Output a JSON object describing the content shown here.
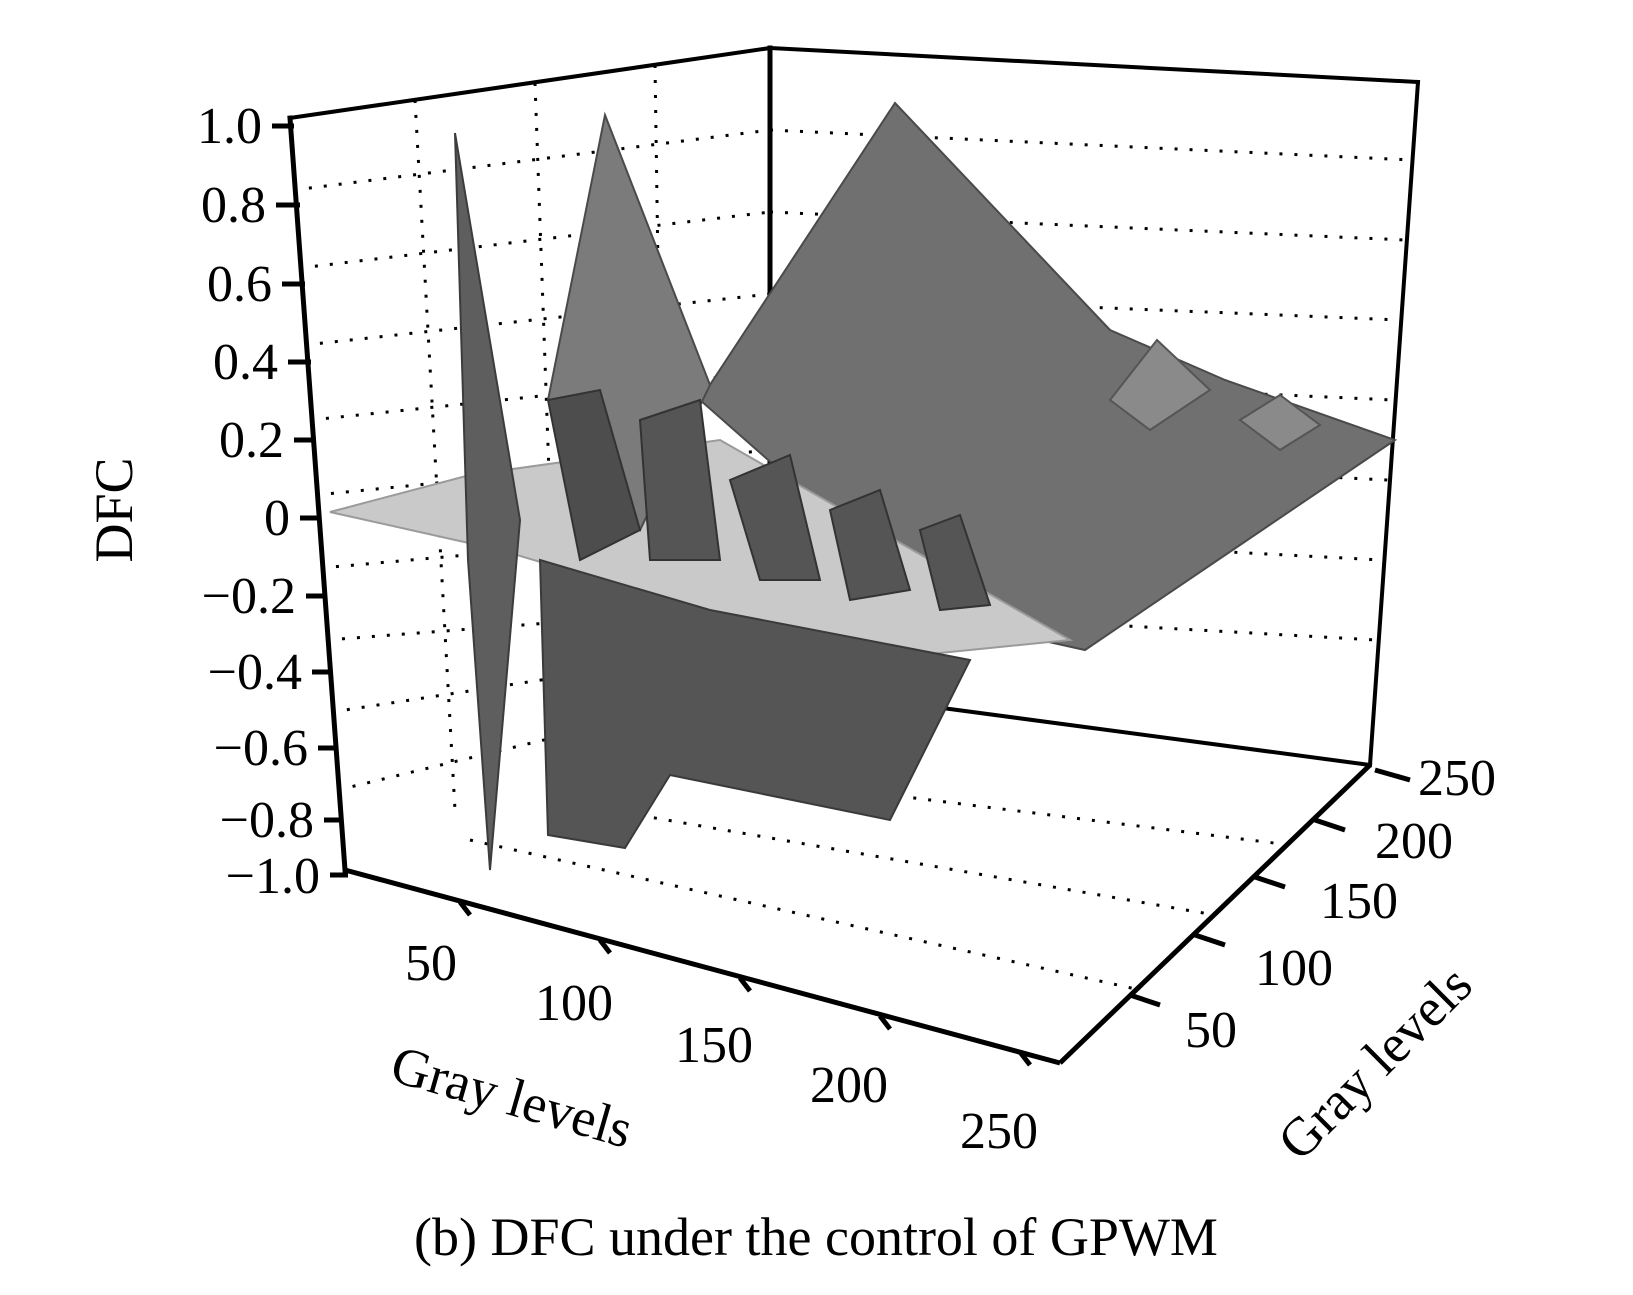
{
  "caption": "(b) DFC under the control of GPWM",
  "chart_data": {
    "type": "surface3d",
    "zlabel": "DFC",
    "xlabel": "Gray levels",
    "ylabel": "Gray levels",
    "zlim": [
      -1.0,
      1.0
    ],
    "xlim": [
      0,
      255
    ],
    "ylim": [
      0,
      255
    ],
    "z_ticks": [
      "1.0",
      "0.8",
      "0.6",
      "0.4",
      "0.2",
      "0",
      "−0.2",
      "−0.4",
      "−0.6",
      "−0.8",
      "−1.0"
    ],
    "x_ticks": [
      "50",
      "100",
      "150",
      "200",
      "250"
    ],
    "y_ticks": [
      "50",
      "100",
      "150",
      "200",
      "250"
    ],
    "grid": true,
    "colormap": "gray",
    "surface_color": "#6e6e6e",
    "peaks": [
      {
        "x": 32,
        "y": 0,
        "z": 1.0
      },
      {
        "x": 64,
        "y": 0,
        "z": 1.0
      },
      {
        "x": 128,
        "y": 0,
        "z": 1.0
      },
      {
        "x": 255,
        "y": 96,
        "z": 0.45
      },
      {
        "x": 255,
        "y": 160,
        "z": 0.25
      }
    ],
    "troughs": [
      {
        "x": 32,
        "y": 0,
        "z": -1.0
      },
      {
        "x": 64,
        "y": 0,
        "z": -0.9
      },
      {
        "x": 128,
        "y": 0,
        "z": -0.8
      }
    ]
  }
}
